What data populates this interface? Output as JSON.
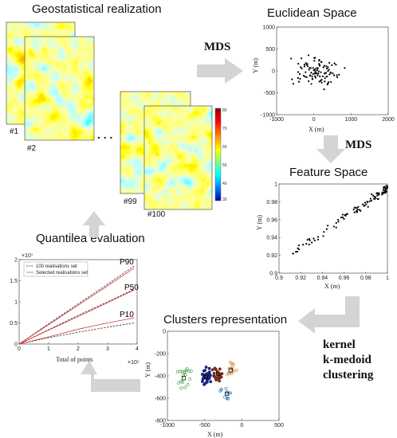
{
  "titles": {
    "geostat": "Geostatistical realization",
    "euclid": "Euclidean Space",
    "feature": "Feature Space",
    "quantile": "Quantilea evaluation",
    "clusters": "Clusters representation"
  },
  "arrow_labels": {
    "mds1": "MDS",
    "mds2": "MDS",
    "kernel": "kernel",
    "kmedoid": "k-medoid",
    "clustering": "clustering"
  },
  "realizations": {
    "r1": "#1",
    "r2": "#2",
    "r99": "#99",
    "r100": "#100",
    "ellipsis": ". . .",
    "colorbar_ticks": [
      "80",
      "70",
      "60",
      "50",
      "40",
      "30"
    ],
    "colorbar_colors": [
      "#8b0000",
      "#ff0000",
      "#ff8c00",
      "#ffff00",
      "#7fff7f",
      "#00ffff",
      "#0080ff",
      "#0000b0"
    ]
  },
  "chart_data": [
    {
      "id": "euclidean",
      "type": "scatter",
      "xlabel": "X (m)",
      "ylabel": "Y (m)",
      "xlim": [
        -1000,
        2000
      ],
      "ylim": [
        -1000,
        1000
      ],
      "xticks": [
        "-1000",
        "0",
        "1000",
        "2000"
      ],
      "yticks": [
        "1000",
        "500",
        "0",
        "-500",
        "-1000"
      ]
    },
    {
      "id": "feature",
      "type": "scatter",
      "xlabel": "X (m)",
      "ylabel": "Y (m)",
      "xlim": [
        0.9,
        1.0
      ],
      "ylim": [
        0.88,
        1.0
      ],
      "xticks": [
        "0.9",
        "0.92",
        "0.94",
        "0.96",
        "0.98",
        "1"
      ],
      "yticks": [
        "1",
        "0.98",
        "0.96",
        "0.94",
        "0.92",
        "0.9"
      ]
    },
    {
      "id": "quantile",
      "type": "line",
      "xlabel": "Total of points",
      "xlim": [
        0,
        4
      ],
      "ylim": [
        0,
        2
      ],
      "xticks": [
        "0",
        "1",
        "2",
        "3",
        "4"
      ],
      "yticks": [
        "2",
        "1.5",
        "1",
        "0.5",
        "0"
      ],
      "x_exponent": "×10⁵",
      "y_exponent": "×10⁷",
      "legend": [
        "100 realisations set",
        "Selected realisations set"
      ],
      "annotations": [
        "P90",
        "P50",
        "P10"
      ],
      "series": [
        {
          "name": "100 realisations set",
          "quantile": "P90",
          "x": [
            0,
            1,
            2,
            3,
            3.9
          ],
          "y": [
            0,
            0.48,
            0.95,
            1.42,
            1.85
          ]
        },
        {
          "name": "Selected realisations set",
          "quantile": "P90",
          "x": [
            0,
            1,
            2,
            3,
            3.9
          ],
          "y": [
            0,
            0.46,
            0.92,
            1.38,
            1.8
          ]
        },
        {
          "name": "100 realisations set",
          "quantile": "P50",
          "x": [
            0,
            1,
            2,
            3,
            3.9
          ],
          "y": [
            0,
            0.34,
            0.68,
            1.0,
            1.3
          ]
        },
        {
          "name": "Selected realisations set",
          "quantile": "P50",
          "x": [
            0,
            1,
            2,
            3,
            3.9
          ],
          "y": [
            0,
            0.33,
            0.65,
            0.98,
            1.28
          ]
        },
        {
          "name": "100 realisations set",
          "quantile": "P10",
          "x": [
            0,
            1,
            2,
            3,
            3.9
          ],
          "y": [
            0,
            0.15,
            0.28,
            0.4,
            0.5
          ]
        },
        {
          "name": "Selected realisations set",
          "quantile": "P10",
          "x": [
            0,
            1,
            2,
            3,
            3.9
          ],
          "y": [
            0,
            0.17,
            0.35,
            0.5,
            0.62
          ]
        }
      ]
    },
    {
      "id": "clusters",
      "type": "scatter",
      "xlabel": "X (m)",
      "ylabel": "Y (m)",
      "xlim": [
        -1000,
        500
      ],
      "ylim": [
        -800,
        0
      ],
      "xticks": [
        "-1000",
        "-500",
        "0",
        "500"
      ],
      "yticks": [
        "0",
        "-200",
        "-400",
        "-600",
        "-800"
      ],
      "cluster_colors": [
        "#3a9a3a",
        "#1a237e",
        "#7a2a1a",
        "#d07a2a",
        "#2a7ac0"
      ]
    }
  ],
  "colors": {
    "arrow": "#d4d4d4",
    "dark_line": "#333333",
    "red_line": "#d43a3a"
  }
}
